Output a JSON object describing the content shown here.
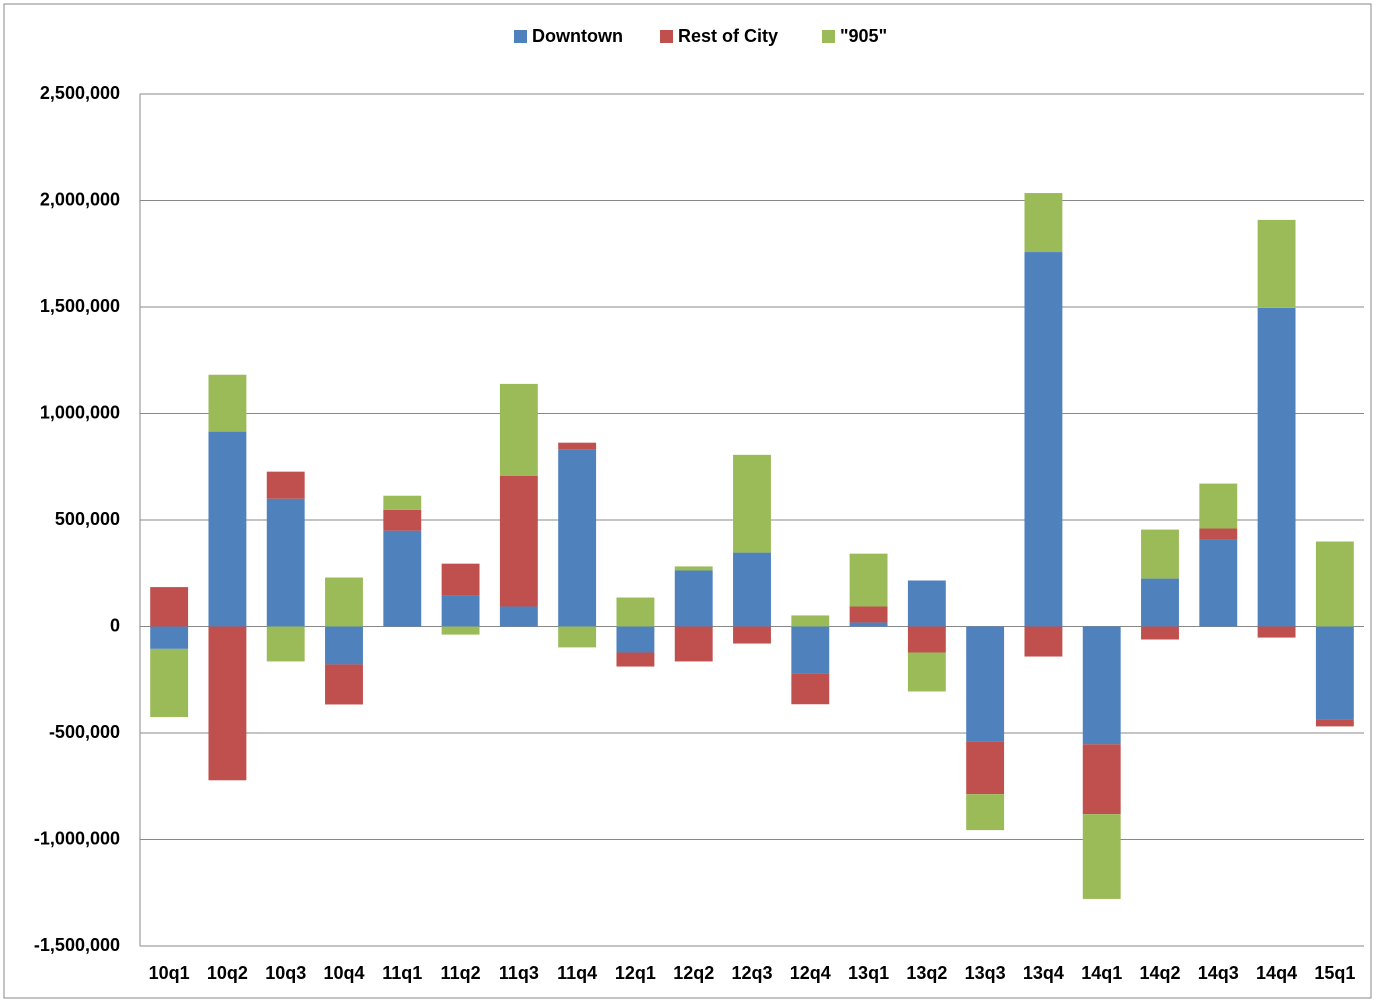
{
  "chart_data": {
    "type": "bar",
    "stacked": true,
    "categories": [
      "10q1",
      "10q2",
      "10q3",
      "10q4",
      "11q1",
      "11q2",
      "11q3",
      "11q4",
      "12q1",
      "12q2",
      "12q3",
      "12q4",
      "13q1",
      "13q2",
      "13q3",
      "13q4",
      "14q1",
      "14q2",
      "14q3",
      "14q4",
      "15q1"
    ],
    "series": [
      {
        "name": "Downtown",
        "color": "#4f81bd",
        "values": [
          -105000,
          915000,
          600000,
          -178000,
          450000,
          145000,
          94000,
          830000,
          -122000,
          263000,
          347000,
          -220000,
          19000,
          216000,
          -539000,
          1758000,
          -553000,
          225000,
          408000,
          1496000,
          -436000
        ]
      },
      {
        "name": "Rest of City",
        "color": "#c0504d",
        "values": [
          185000,
          -722000,
          127000,
          -188000,
          98000,
          150000,
          614000,
          33000,
          -66000,
          -164000,
          -80000,
          -145000,
          75000,
          -122000,
          -248000,
          -141000,
          -328000,
          -61000,
          52000,
          -52000,
          -33000
        ]
      },
      {
        "name": "\"905\"",
        "color": "#9bbb59",
        "values": [
          -320000,
          267000,
          -164000,
          230000,
          66000,
          -38000,
          431000,
          -98000,
          136000,
          19000,
          459000,
          52000,
          248000,
          -183000,
          -169000,
          277000,
          -398000,
          230000,
          211000,
          413000,
          399000
        ]
      }
    ],
    "ylim": [
      -1500000,
      2500000
    ],
    "yticks": [
      {
        "value": -1500000,
        "label": "-1,500,000"
      },
      {
        "value": -1000000,
        "label": "-1,000,000"
      },
      {
        "value": -500000,
        "label": "-500,000"
      },
      0,
      {
        "value": 500000,
        "label": "500,000"
      },
      {
        "value": 1000000,
        "label": "1,000,000"
      },
      {
        "value": 1500000,
        "label": "1,500,000"
      },
      {
        "value": 2000000,
        "label": "2,000,000"
      },
      {
        "value": 2500000,
        "label": "2,500,000"
      }
    ],
    "grid": true,
    "legend": "top"
  }
}
